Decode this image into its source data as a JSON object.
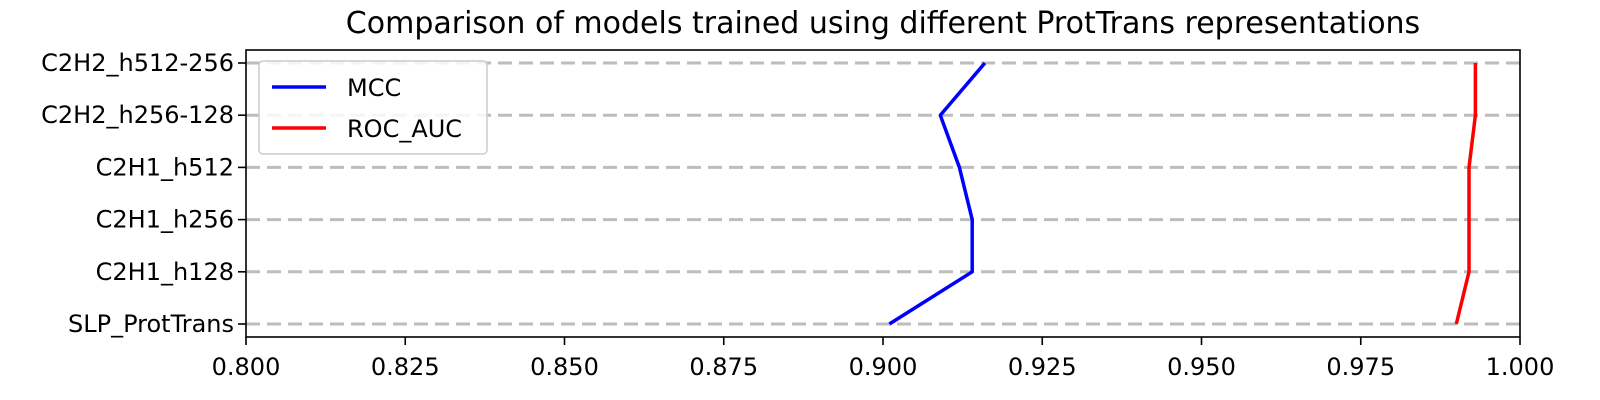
{
  "chart_data": {
    "type": "line",
    "title": "Comparison of models trained using different ProtTrans representations",
    "xlabel": "",
    "ylabel": "",
    "xlim": [
      0.8,
      1.0
    ],
    "xticks": [
      "0.800",
      "0.825",
      "0.850",
      "0.875",
      "0.900",
      "0.925",
      "0.950",
      "0.975",
      "1.000"
    ],
    "categories": [
      "SLP_ProtTrans",
      "C2H1_h128",
      "C2H1_h256",
      "C2H1_h512",
      "C2H2_h256-128",
      "C2H2_h512-256"
    ],
    "series": [
      {
        "name": "MCC",
        "color": "#0000ff",
        "values": [
          0.901,
          0.914,
          0.914,
          0.912,
          0.909,
          0.916
        ]
      },
      {
        "name": "ROC_AUC",
        "color": "#ff0000",
        "values": [
          0.99,
          0.992,
          0.992,
          0.992,
          0.993,
          0.993
        ]
      }
    ],
    "gridlines": "horizontal-dashed",
    "legend": "top-left"
  }
}
